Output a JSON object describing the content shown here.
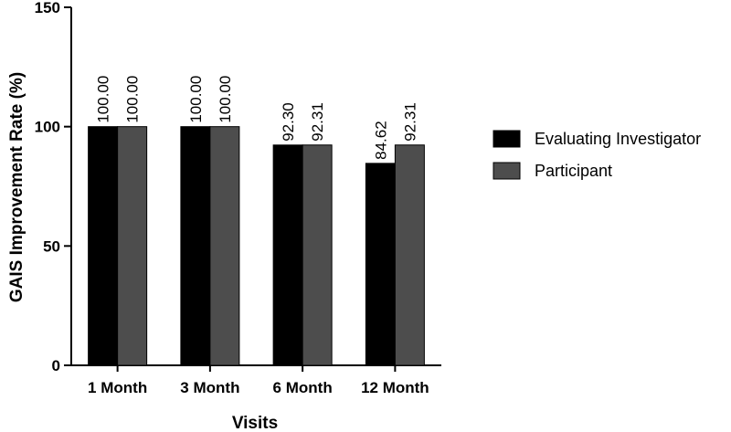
{
  "chart_data": {
    "type": "bar",
    "title": "",
    "xlabel": "Visits",
    "ylabel": "GAIS Improvement Rate (%)",
    "ylim": [
      0,
      150
    ],
    "yticks": [
      0,
      50,
      100,
      150
    ],
    "categories": [
      "1 Month",
      "3 Month",
      "6 Month",
      "12 Month"
    ],
    "series": [
      {
        "name": "Evaluating Investigator",
        "color": "#000000",
        "values": [
          100.0,
          100.0,
          92.3,
          84.62
        ],
        "labels": [
          "100.00",
          "100.00",
          "92.30",
          "84.62"
        ]
      },
      {
        "name": "Participant",
        "color": "#4d4d4d",
        "values": [
          100.0,
          100.0,
          92.31,
          92.31
        ],
        "labels": [
          "100.00",
          "100.00",
          "92.31",
          "92.31"
        ]
      }
    ],
    "legend_position": "right",
    "grid": false
  }
}
